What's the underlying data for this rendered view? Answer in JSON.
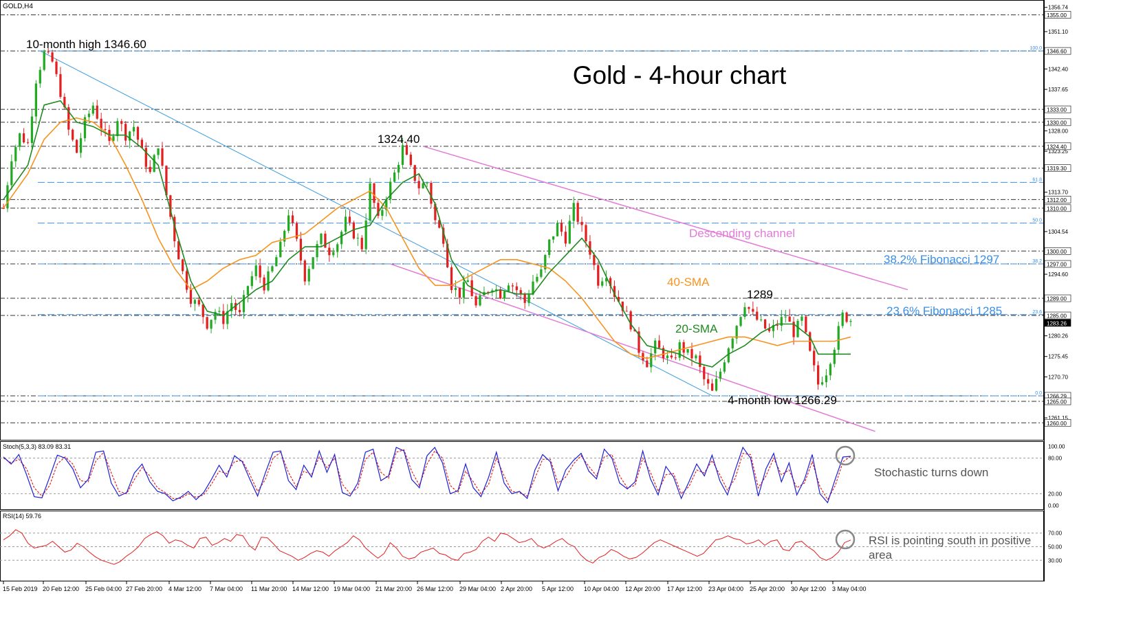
{
  "chart_data": {
    "type": "candlestick",
    "symbol": "GOLD,H4",
    "title": "Gold - 4-hour chart",
    "price_axis": {
      "ylim": [
        1257,
        1357.5
      ],
      "ticks": [
        "1356.74",
        "1351.10",
        "1342.40",
        "1337.65",
        "1328.00",
        "1323.25",
        "1313.70",
        "1304.54",
        "1294.60",
        "1280.26",
        "1275.45",
        "1270.70",
        "1261.15"
      ],
      "level_labels": [
        "1355.00",
        "1346.60",
        "1333.00",
        "1330.00",
        "1324.40",
        "1319.30",
        "1312.00",
        "1310.00",
        "1300.00",
        "1297.00",
        "1289.00",
        "1285.00",
        "1283.26",
        "1266.29",
        "1265.00",
        "1260.00"
      ],
      "current_price": "1283.26"
    },
    "x_ticks": [
      "15 Feb 2019",
      "20 Feb 12:00",
      "25 Feb 04:00",
      "27 Feb 20:00",
      "4 Mar 12:00",
      "7 Mar 04:00",
      "11 Mar 20:00",
      "14 Mar 12:00",
      "19 Mar 04:00",
      "21 Mar 20:00",
      "26 Mar 12:00",
      "29 Mar 04:00",
      "2 Apr 20:00",
      "5 Apr 12:00",
      "10 Apr 04:00",
      "12 Apr 20:00",
      "17 Apr 12:00",
      "23 Apr 04:00",
      "25 Apr 20:00",
      "30 Apr 12:00",
      "3 May 04:00"
    ],
    "horizontal_levels": [
      1355,
      1346.6,
      1333,
      1330,
      1324.4,
      1319.3,
      1312,
      1310,
      1300,
      1297,
      1289,
      1285,
      1266.29,
      1265,
      1260
    ],
    "fibonacci": {
      "levels": [
        {
          "ratio": "100.0",
          "price": 1346.6
        },
        {
          "ratio": "61.8",
          "price": 1316.0
        },
        {
          "ratio": "50.0",
          "price": 1306.5
        },
        {
          "ratio": "38.2",
          "price": 1297.0
        },
        {
          "ratio": "23.6",
          "price": 1285.2
        },
        {
          "ratio": "0.0",
          "price": 1266.29
        }
      ]
    },
    "close_path": [
      [
        0,
        1310
      ],
      [
        2,
        1322
      ],
      [
        4,
        1327
      ],
      [
        6,
        1325
      ],
      [
        8,
        1340
      ],
      [
        10,
        1346
      ],
      [
        12,
        1344
      ],
      [
        14,
        1337
      ],
      [
        16,
        1328
      ],
      [
        18,
        1323
      ],
      [
        20,
        1330
      ],
      [
        22,
        1334
      ],
      [
        24,
        1329
      ],
      [
        26,
        1325
      ],
      [
        28,
        1331
      ],
      [
        30,
        1327
      ],
      [
        32,
        1329
      ],
      [
        34,
        1323
      ],
      [
        36,
        1318
      ],
      [
        38,
        1325
      ],
      [
        40,
        1313
      ],
      [
        42,
        1303
      ],
      [
        44,
        1295
      ],
      [
        46,
        1289
      ],
      [
        48,
        1287
      ],
      [
        50,
        1283
      ],
      [
        52,
        1286
      ],
      [
        54,
        1284
      ],
      [
        56,
        1288
      ],
      [
        58,
        1285
      ],
      [
        60,
        1292
      ],
      [
        62,
        1296
      ],
      [
        64,
        1292
      ],
      [
        66,
        1296
      ],
      [
        68,
        1301
      ],
      [
        70,
        1309
      ],
      [
        72,
        1302
      ],
      [
        74,
        1294
      ],
      [
        76,
        1299
      ],
      [
        78,
        1303
      ],
      [
        80,
        1300
      ],
      [
        82,
        1302
      ],
      [
        84,
        1307
      ],
      [
        86,
        1304
      ],
      [
        88,
        1301
      ],
      [
        90,
        1315
      ],
      [
        92,
        1307
      ],
      [
        94,
        1313
      ],
      [
        96,
        1318
      ],
      [
        98,
        1324
      ],
      [
        100,
        1319
      ],
      [
        102,
        1315
      ],
      [
        104,
        1316
      ],
      [
        106,
        1307
      ],
      [
        108,
        1303
      ],
      [
        110,
        1292
      ],
      [
        112,
        1290
      ],
      [
        114,
        1293
      ],
      [
        116,
        1287
      ],
      [
        118,
        1290
      ],
      [
        120,
        1292
      ],
      [
        122,
        1290
      ],
      [
        124,
        1293
      ],
      [
        126,
        1291
      ],
      [
        128,
        1288
      ],
      [
        130,
        1293
      ],
      [
        132,
        1295
      ],
      [
        134,
        1302
      ],
      [
        136,
        1306
      ],
      [
        138,
        1303
      ],
      [
        140,
        1310
      ],
      [
        142,
        1305
      ],
      [
        144,
        1300
      ],
      [
        146,
        1293
      ],
      [
        148,
        1295
      ],
      [
        150,
        1290
      ],
      [
        152,
        1287
      ],
      [
        154,
        1283
      ],
      [
        156,
        1277
      ],
      [
        158,
        1274
      ],
      [
        160,
        1278
      ],
      [
        162,
        1276
      ],
      [
        164,
        1274
      ],
      [
        166,
        1278
      ],
      [
        168,
        1276
      ],
      [
        170,
        1275
      ],
      [
        172,
        1270
      ],
      [
        174,
        1267
      ],
      [
        176,
        1272
      ],
      [
        178,
        1278
      ],
      [
        180,
        1283
      ],
      [
        182,
        1288
      ],
      [
        184,
        1285
      ],
      [
        186,
        1283
      ],
      [
        188,
        1281
      ],
      [
        190,
        1283
      ],
      [
        192,
        1285
      ],
      [
        194,
        1281
      ],
      [
        196,
        1284
      ],
      [
        198,
        1276
      ],
      [
        200,
        1269
      ],
      [
        202,
        1272
      ],
      [
        204,
        1278
      ],
      [
        206,
        1285
      ],
      [
        208,
        1284
      ]
    ],
    "sma20_path": [
      [
        0,
        1312
      ],
      [
        6,
        1320
      ],
      [
        10,
        1334
      ],
      [
        14,
        1335
      ],
      [
        18,
        1330
      ],
      [
        22,
        1329
      ],
      [
        26,
        1327
      ],
      [
        30,
        1327
      ],
      [
        34,
        1324
      ],
      [
        38,
        1320
      ],
      [
        42,
        1306
      ],
      [
        46,
        1293
      ],
      [
        50,
        1286
      ],
      [
        54,
        1285
      ],
      [
        58,
        1288
      ],
      [
        62,
        1291
      ],
      [
        66,
        1293
      ],
      [
        70,
        1298
      ],
      [
        74,
        1301
      ],
      [
        78,
        1301
      ],
      [
        82,
        1303
      ],
      [
        86,
        1305
      ],
      [
        90,
        1306
      ],
      [
        94,
        1312
      ],
      [
        98,
        1316
      ],
      [
        102,
        1318
      ],
      [
        106,
        1311
      ],
      [
        110,
        1298
      ],
      [
        114,
        1292
      ],
      [
        118,
        1290
      ],
      [
        122,
        1291
      ],
      [
        126,
        1290
      ],
      [
        130,
        1290
      ],
      [
        134,
        1295
      ],
      [
        138,
        1299
      ],
      [
        142,
        1303
      ],
      [
        146,
        1298
      ],
      [
        150,
        1290
      ],
      [
        154,
        1283
      ],
      [
        158,
        1278
      ],
      [
        162,
        1277
      ],
      [
        166,
        1276
      ],
      [
        170,
        1274
      ],
      [
        174,
        1273
      ],
      [
        178,
        1276
      ],
      [
        182,
        1278
      ],
      [
        186,
        1281
      ],
      [
        190,
        1283
      ],
      [
        194,
        1283
      ],
      [
        198,
        1280
      ],
      [
        200,
        1276
      ],
      [
        204,
        1276
      ],
      [
        208,
        1276
      ]
    ],
    "sma40_path": [
      [
        0,
        1310
      ],
      [
        6,
        1318
      ],
      [
        10,
        1326
      ],
      [
        14,
        1330
      ],
      [
        18,
        1331
      ],
      [
        22,
        1330
      ],
      [
        26,
        1327
      ],
      [
        30,
        1320
      ],
      [
        34,
        1312
      ],
      [
        38,
        1303
      ],
      [
        42,
        1296
      ],
      [
        46,
        1291
      ],
      [
        50,
        1293
      ],
      [
        54,
        1296
      ],
      [
        58,
        1298
      ],
      [
        62,
        1299
      ],
      [
        66,
        1302
      ],
      [
        70,
        1303
      ],
      [
        74,
        1304
      ],
      [
        78,
        1307
      ],
      [
        82,
        1310
      ],
      [
        86,
        1312
      ],
      [
        90,
        1314
      ],
      [
        94,
        1310
      ],
      [
        98,
        1303
      ],
      [
        102,
        1296
      ],
      [
        106,
        1292
      ],
      [
        110,
        1292
      ],
      [
        114,
        1294
      ],
      [
        118,
        1296
      ],
      [
        122,
        1298
      ],
      [
        126,
        1298
      ],
      [
        130,
        1297
      ],
      [
        134,
        1296
      ],
      [
        138,
        1293
      ],
      [
        142,
        1289
      ],
      [
        146,
        1284
      ],
      [
        150,
        1279
      ],
      [
        154,
        1276
      ],
      [
        158,
        1275
      ],
      [
        162,
        1276
      ],
      [
        166,
        1277
      ],
      [
        170,
        1278
      ],
      [
        174,
        1279
      ],
      [
        178,
        1280
      ],
      [
        182,
        1280
      ],
      [
        186,
        1279
      ],
      [
        190,
        1278
      ],
      [
        194,
        1279
      ],
      [
        198,
        1279
      ],
      [
        204,
        1279
      ],
      [
        208,
        1280
      ]
    ],
    "trendline": [
      [
        9,
        1346.6
      ],
      [
        174,
        1266.29
      ]
    ],
    "channel_upper": [
      [
        103,
        1324.4
      ],
      [
        222,
        1291
      ]
    ],
    "channel_lower": [
      [
        95,
        1297
      ],
      [
        214,
        1258
      ]
    ],
    "stochastic": {
      "label": "Stoch(5,3,3) 83.09 83.31",
      "ylim": [
        -5,
        105
      ],
      "ticks": [
        "100.00",
        "80.00",
        "20.00",
        "0.00"
      ],
      "k": [
        82,
        70,
        86,
        52,
        15,
        13,
        48,
        85,
        80,
        62,
        30,
        44,
        90,
        92,
        38,
        16,
        22,
        55,
        70,
        40,
        24,
        20,
        8,
        14,
        24,
        10,
        22,
        44,
        68,
        48,
        84,
        74,
        44,
        16,
        55,
        90,
        92,
        42,
        27,
        68,
        48,
        92,
        56,
        86,
        22,
        16,
        38,
        90,
        95,
        42,
        50,
        98,
        92,
        44,
        30,
        84,
        98,
        72,
        20,
        25,
        70,
        30,
        15,
        48,
        90,
        38,
        20,
        24,
        12,
        60,
        86,
        74,
        25,
        60,
        76,
        88,
        58,
        45,
        95,
        80,
        38,
        28,
        40,
        92,
        45,
        18,
        66,
        48,
        12,
        40,
        70,
        50,
        85,
        42,
        18,
        60,
        98,
        80,
        16,
        62,
        88,
        40,
        72,
        18,
        44,
        86,
        20,
        5,
        45,
        82,
        83
      ],
      "d": [
        80,
        72,
        78,
        62,
        30,
        16,
        34,
        70,
        82,
        70,
        42,
        40,
        75,
        90,
        55,
        24,
        20,
        44,
        64,
        50,
        30,
        22,
        12,
        12,
        20,
        14,
        18,
        36,
        58,
        54,
        74,
        76,
        52,
        24,
        44,
        80,
        90,
        56,
        32,
        58,
        52,
        82,
        64,
        80,
        36,
        20,
        30,
        78,
        90,
        56,
        46,
        90,
        94,
        58,
        34,
        70,
        92,
        80,
        34,
        22,
        58,
        40,
        20,
        36,
        80,
        50,
        24,
        22,
        16,
        46,
        78,
        78,
        38,
        48,
        70,
        84,
        66,
        50,
        82,
        86,
        50,
        30,
        34,
        80,
        56,
        24,
        52,
        54,
        20,
        32,
        60,
        55,
        76,
        52,
        26,
        46,
        88,
        86,
        30,
        50,
        80,
        52,
        60,
        30,
        38,
        74,
        32,
        10,
        34,
        74,
        83
      ]
    },
    "rsi": {
      "label": "RSI(14) 59.76",
      "ylim": [
        0,
        100
      ],
      "ticks": [
        "70.00",
        "50.00",
        "30.00"
      ],
      "values": [
        60,
        66,
        75,
        70,
        55,
        48,
        50,
        52,
        58,
        50,
        42,
        45,
        55,
        50,
        42,
        35,
        30,
        27,
        24,
        28,
        36,
        42,
        50,
        62,
        68,
        72,
        66,
        55,
        60,
        58,
        52,
        48,
        62,
        64,
        52,
        56,
        62,
        58,
        68,
        66,
        52,
        45,
        64,
        63,
        54,
        44,
        40,
        36,
        30,
        34,
        40,
        44,
        42,
        36,
        44,
        50,
        56,
        66,
        60,
        48,
        40,
        33,
        40,
        56,
        48,
        36,
        32,
        34,
        42,
        45,
        48,
        40,
        38,
        32,
        30,
        40,
        42,
        46,
        58,
        64,
        58,
        70,
        68,
        62,
        56,
        58,
        62,
        52,
        48,
        52,
        58,
        62,
        54,
        50,
        38,
        30,
        26,
        34,
        38,
        46,
        42,
        36,
        32,
        34,
        40,
        48,
        56,
        60,
        56,
        52,
        48,
        44,
        40,
        36,
        40,
        50,
        60,
        62,
        66,
        62,
        60,
        54,
        56,
        60,
        52,
        58,
        60,
        46,
        44,
        56,
        58,
        50,
        44,
        34,
        30,
        34,
        42,
        56,
        59.76
      ]
    },
    "annotations": [
      "10-month high 1346.60",
      "1324.40",
      "Descending channel",
      "38.2% Fibonacci 1297",
      "40-SMA",
      "1289",
      "23.6% Fibonacci 1285",
      "20-SMA",
      "4-month low 1266.29",
      "Stochastic turns down",
      "RSI is pointing south in positive area"
    ],
    "colors": {
      "candle_up": "#22aa22",
      "candle_down": "#e31f1f",
      "sma20": "#1f8a1f",
      "sma40": "#f7931e",
      "channel": "#e27ad8",
      "fibonacci": "#3a8ee6",
      "trendline": "#3a9be0",
      "stoch_k": "#1f1fd6",
      "stoch_d": "#e31f1f",
      "rsi": "#e31f1f"
    }
  }
}
